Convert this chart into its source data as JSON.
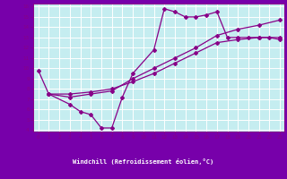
{
  "xlabel": "Windchill (Refroidissement éolien,°C)",
  "bg_color": "#c5edf0",
  "line_color": "#880088",
  "footer_bg": "#7700aa",
  "grid_color": "#ffffff",
  "xlim": [
    -0.5,
    23.4
  ],
  "ylim": [
    3.85,
    16.3
  ],
  "xticks": [
    0,
    1,
    2,
    3,
    4,
    5,
    6,
    7,
    8,
    9,
    10,
    11,
    12,
    13,
    14,
    15,
    16,
    17,
    18,
    19,
    20,
    21,
    22,
    23
  ],
  "yticks": [
    4,
    5,
    6,
    7,
    8,
    9,
    10,
    11,
    12,
    13,
    14,
    15,
    16
  ],
  "curve1_x": [
    0,
    1,
    3,
    4,
    5,
    6,
    7,
    8,
    9,
    11,
    12,
    13,
    14,
    15,
    16,
    17,
    18,
    19,
    20,
    21,
    22,
    23
  ],
  "curve1_y": [
    9.8,
    7.5,
    6.5,
    5.8,
    5.5,
    4.2,
    4.2,
    7.2,
    9.5,
    11.8,
    15.8,
    15.5,
    15.0,
    15.0,
    15.2,
    15.5,
    13.0,
    13.0,
    13.0,
    13.0,
    13.0,
    12.8
  ],
  "curve2_x": [
    1,
    3,
    5,
    7,
    9,
    11,
    13,
    15,
    17,
    19,
    21,
    23
  ],
  "curve2_y": [
    7.5,
    7.5,
    7.7,
    8.0,
    8.7,
    9.5,
    10.5,
    11.5,
    12.5,
    12.8,
    13.0,
    13.0
  ],
  "curve3_x": [
    1,
    3,
    5,
    7,
    9,
    11,
    13,
    15,
    17,
    19,
    21,
    23
  ],
  "curve3_y": [
    7.5,
    7.2,
    7.5,
    7.8,
    9.0,
    10.0,
    11.0,
    12.0,
    13.2,
    13.8,
    14.2,
    14.7
  ]
}
